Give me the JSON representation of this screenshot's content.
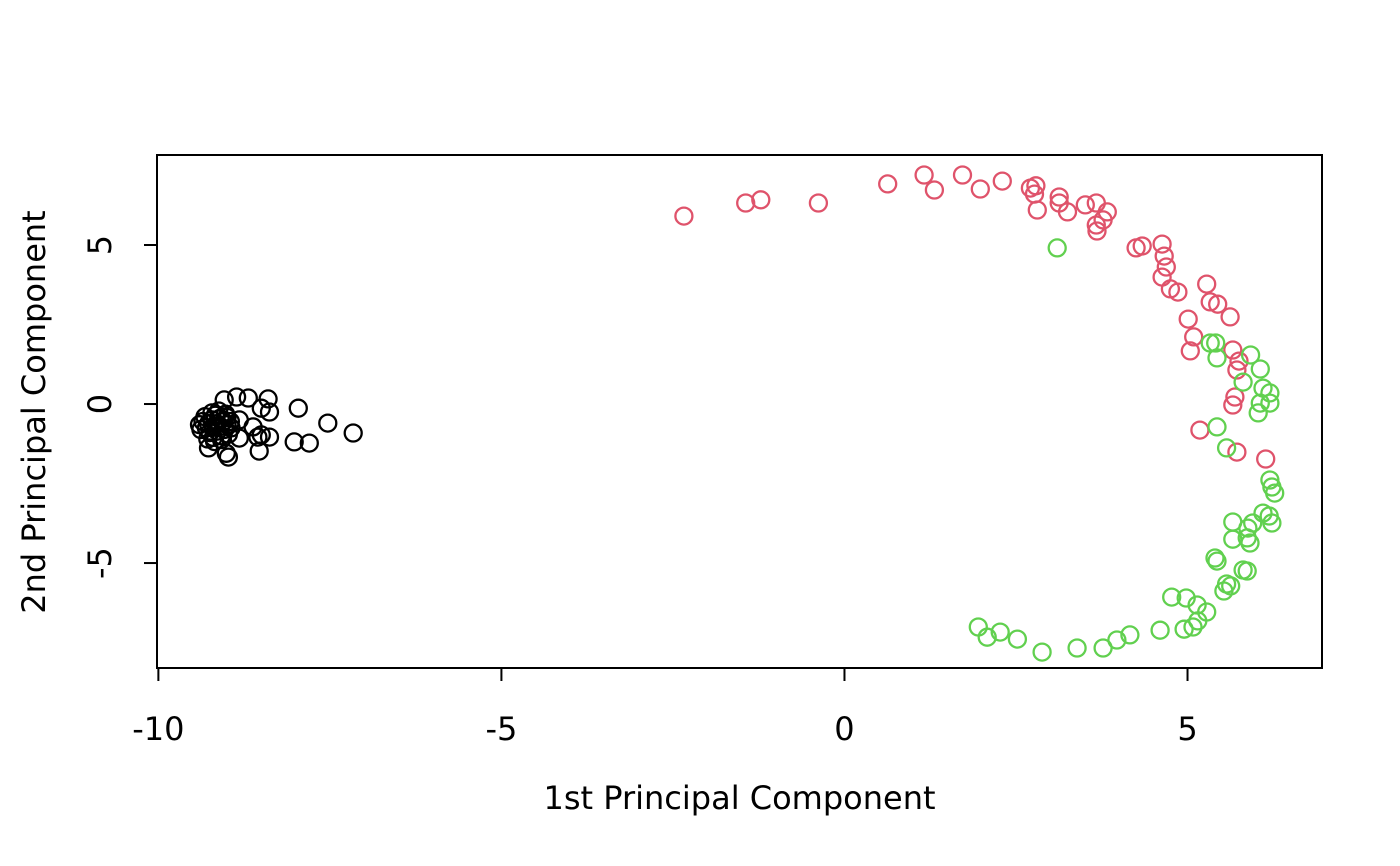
{
  "figure": {
    "background": "#ffffff",
    "foreground": "#000000"
  },
  "chart_data": {
    "type": "scatter",
    "title": "",
    "xlabel": "1st Principal Component",
    "ylabel": "2nd Principal Component",
    "xlim": [
      -10.02,
      6.96
    ],
    "ylim": [
      -8.3,
      7.83
    ],
    "xticks": [
      -10,
      -5,
      0,
      5
    ],
    "yticks": [
      -5,
      0,
      5
    ],
    "grid": false,
    "legend": "none",
    "marker": "open-circle",
    "series": [
      {
        "name": "black-circles",
        "color": "#000000",
        "points": [
          [
            -9.35,
            -0.55
          ],
          [
            -9.32,
            -0.4
          ],
          [
            -9.3,
            -0.75
          ],
          [
            -9.27,
            -0.62
          ],
          [
            -9.25,
            -0.9
          ],
          [
            -9.22,
            -0.5
          ],
          [
            -9.2,
            -0.72
          ],
          [
            -9.2,
            -1.05
          ],
          [
            -9.17,
            -0.35
          ],
          [
            -9.15,
            -0.62
          ],
          [
            -9.14,
            -0.85
          ],
          [
            -9.1,
            -0.45
          ],
          [
            -9.1,
            -0.7
          ],
          [
            -9.08,
            -1.0
          ],
          [
            -9.05,
            -0.55
          ],
          [
            -9.04,
            -0.8
          ],
          [
            -9.0,
            -0.42
          ],
          [
            -9.0,
            -0.65
          ],
          [
            -8.98,
            -0.95
          ],
          [
            -9.4,
            -0.65
          ],
          [
            -9.38,
            -0.8
          ],
          [
            -9.28,
            -1.1
          ],
          [
            -9.18,
            -1.18
          ],
          [
            -9.08,
            -1.12
          ],
          [
            -8.95,
            -0.55
          ],
          [
            -8.94,
            -0.75
          ],
          [
            -9.22,
            -0.28
          ],
          [
            -9.12,
            -0.22
          ],
          [
            -9.02,
            -0.32
          ],
          [
            -9.27,
            -1.38
          ],
          [
            -9.01,
            -1.55
          ],
          [
            -9.04,
            0.13
          ],
          [
            -8.86,
            0.22
          ],
          [
            -8.69,
            0.19
          ],
          [
            -8.5,
            -0.13
          ],
          [
            -8.4,
            0.16
          ],
          [
            -8.38,
            -0.25
          ],
          [
            -8.82,
            -0.5
          ],
          [
            -8.62,
            -0.72
          ],
          [
            -8.5,
            -0.97
          ],
          [
            -8.38,
            -1.04
          ],
          [
            -8.55,
            -1.04
          ],
          [
            -8.82,
            -1.07
          ],
          [
            -8.53,
            -1.48
          ],
          [
            -8.98,
            -1.67
          ],
          [
            -7.96,
            -0.13
          ],
          [
            -8.02,
            -1.19
          ],
          [
            -7.8,
            -1.23
          ],
          [
            -7.53,
            -0.6
          ],
          [
            -7.16,
            -0.91
          ]
        ]
      },
      {
        "name": "red-circles",
        "color": "#DF536B",
        "points": [
          [
            -2.34,
            5.91
          ],
          [
            -1.44,
            6.32
          ],
          [
            -1.22,
            6.42
          ],
          [
            -0.38,
            6.32
          ],
          [
            0.63,
            6.92
          ],
          [
            1.16,
            7.2
          ],
          [
            1.31,
            6.73
          ],
          [
            1.72,
            7.2
          ],
          [
            1.98,
            6.76
          ],
          [
            2.3,
            7.01
          ],
          [
            2.71,
            6.79
          ],
          [
            2.79,
            6.86
          ],
          [
            2.77,
            6.6
          ],
          [
            2.81,
            6.1
          ],
          [
            3.13,
            6.51
          ],
          [
            3.13,
            6.32
          ],
          [
            3.25,
            6.04
          ],
          [
            3.51,
            6.26
          ],
          [
            3.67,
            6.32
          ],
          [
            3.83,
            6.04
          ],
          [
            3.77,
            5.79
          ],
          [
            3.67,
            5.63
          ],
          [
            3.68,
            5.44
          ],
          [
            4.25,
            4.91
          ],
          [
            4.34,
            4.97
          ],
          [
            4.63,
            5.03
          ],
          [
            4.66,
            4.65
          ],
          [
            4.69,
            4.31
          ],
          [
            4.63,
            3.99
          ],
          [
            4.75,
            3.62
          ],
          [
            4.86,
            3.52
          ],
          [
            5.28,
            3.77
          ],
          [
            5.33,
            3.21
          ],
          [
            5.44,
            3.14
          ],
          [
            5.62,
            2.74
          ],
          [
            5.01,
            2.67
          ],
          [
            5.09,
            2.11
          ],
          [
            5.04,
            1.67
          ],
          [
            5.66,
            1.7
          ],
          [
            5.75,
            1.35
          ],
          [
            5.72,
            1.07
          ],
          [
            5.69,
            0.22
          ],
          [
            5.66,
            -0.03
          ],
          [
            5.18,
            -0.82
          ],
          [
            5.72,
            -1.51
          ],
          [
            6.14,
            -1.73
          ]
        ]
      },
      {
        "name": "green-circles",
        "color": "#61D04F",
        "points": [
          [
            3.1,
            4.91
          ],
          [
            5.33,
            1.92
          ],
          [
            5.41,
            1.92
          ],
          [
            5.43,
            1.45
          ],
          [
            5.92,
            1.54
          ],
          [
            5.81,
            0.69
          ],
          [
            6.06,
            1.1
          ],
          [
            6.1,
            0.5
          ],
          [
            6.2,
            0.35
          ],
          [
            6.06,
            0.03
          ],
          [
            6.2,
            0.03
          ],
          [
            6.03,
            -0.28
          ],
          [
            5.43,
            -0.72
          ],
          [
            5.57,
            -1.38
          ],
          [
            6.2,
            -2.39
          ],
          [
            6.23,
            -2.61
          ],
          [
            6.27,
            -2.8
          ],
          [
            6.1,
            -3.43
          ],
          [
            6.19,
            -3.52
          ],
          [
            6.23,
            -3.74
          ],
          [
            5.66,
            -3.71
          ],
          [
            5.95,
            -3.74
          ],
          [
            5.88,
            -3.9
          ],
          [
            5.87,
            -4.21
          ],
          [
            5.66,
            -4.25
          ],
          [
            5.91,
            -4.37
          ],
          [
            5.4,
            -4.84
          ],
          [
            5.43,
            -4.94
          ],
          [
            5.81,
            -5.22
          ],
          [
            5.87,
            -5.25
          ],
          [
            5.57,
            -5.66
          ],
          [
            5.63,
            -5.72
          ],
          [
            5.53,
            -5.88
          ],
          [
            4.77,
            -6.07
          ],
          [
            4.98,
            -6.1
          ],
          [
            5.14,
            -6.32
          ],
          [
            5.28,
            -6.54
          ],
          [
            5.15,
            -6.82
          ],
          [
            5.08,
            -7.01
          ],
          [
            4.6,
            -7.11
          ],
          [
            4.95,
            -7.08
          ],
          [
            4.16,
            -7.26
          ],
          [
            3.97,
            -7.42
          ],
          [
            3.77,
            -7.67
          ],
          [
            3.39,
            -7.67
          ],
          [
            2.88,
            -7.8
          ],
          [
            2.52,
            -7.39
          ],
          [
            2.27,
            -7.17
          ],
          [
            2.08,
            -7.33
          ],
          [
            1.95,
            -7.01
          ]
        ]
      }
    ]
  }
}
